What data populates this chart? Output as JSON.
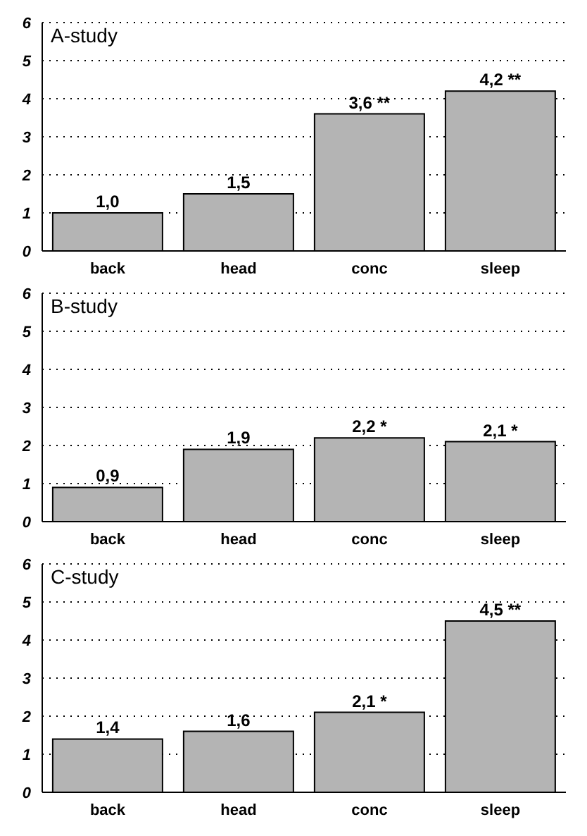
{
  "chart_data": [
    {
      "type": "bar",
      "title": "A-study",
      "categories": [
        "back",
        "head",
        "conc",
        "sleep"
      ],
      "values": [
        1.0,
        1.5,
        3.6,
        4.2
      ],
      "value_labels": [
        "1,0",
        "1,5",
        "3,6 **",
        "4,2 **"
      ],
      "color": "#b4b4b4",
      "ylim": [
        0,
        6
      ],
      "yticks": [
        0,
        1,
        2,
        3,
        4,
        5,
        6
      ],
      "grid": "y"
    },
    {
      "type": "bar",
      "title": "B-study",
      "categories": [
        "back",
        "head",
        "conc",
        "sleep"
      ],
      "values": [
        0.9,
        1.9,
        2.2,
        2.1
      ],
      "value_labels": [
        "0,9",
        "1,9",
        "2,2 *",
        "2,1 *"
      ],
      "color": "#b4b4b4",
      "ylim": [
        0,
        6
      ],
      "yticks": [
        0,
        1,
        2,
        3,
        4,
        5,
        6
      ],
      "grid": "y"
    },
    {
      "type": "bar",
      "title": "C-study",
      "categories": [
        "back",
        "head",
        "conc",
        "sleep"
      ],
      "values": [
        1.4,
        1.6,
        2.1,
        4.5
      ],
      "value_labels": [
        "1,4",
        "1,6",
        "2,1 *",
        "4,5 **"
      ],
      "color": "#b4b4b4",
      "ylim": [
        0,
        6
      ],
      "yticks": [
        0,
        1,
        2,
        3,
        4,
        5,
        6
      ],
      "grid": "y"
    }
  ]
}
